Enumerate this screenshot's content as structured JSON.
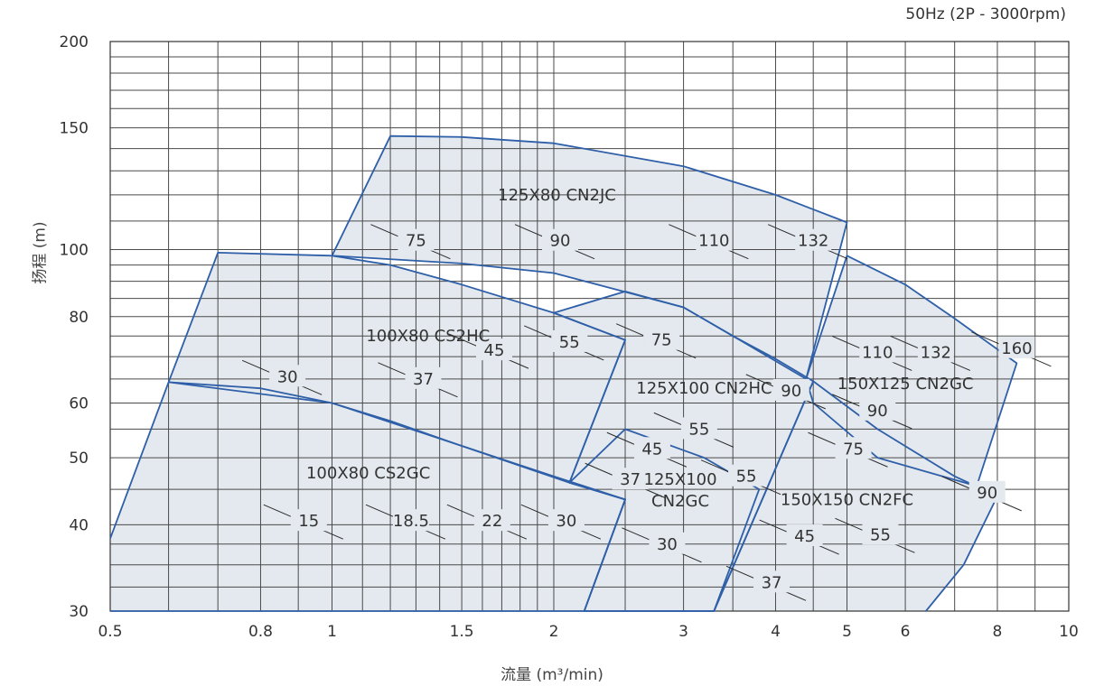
{
  "chart_data": {
    "type": "area",
    "note": "50Hz (2P - 3000rpm)",
    "xlabel": "流量 (m³/min)",
    "ylabel": "扬程 (m)",
    "x_scale": "log",
    "y_scale": "log",
    "xlim": [
      0.5,
      10
    ],
    "ylim": [
      30,
      200
    ],
    "x_ticks": [
      0.5,
      0.8,
      1,
      1.5,
      2,
      3,
      4,
      5,
      6,
      8,
      10
    ],
    "x_tick_labels": [
      "0.5",
      "0.8",
      "1",
      "1.5",
      "2",
      "3",
      "4",
      "5",
      "6",
      "8",
      "10"
    ],
    "y_ticks": [
      30,
      40,
      50,
      60,
      80,
      100,
      150,
      200
    ],
    "y_tick_labels": [
      "30",
      "40",
      "50",
      "60",
      "80",
      "100",
      "150",
      "200"
    ],
    "x_grid": [
      0.5,
      0.6,
      0.7,
      0.8,
      0.9,
      1,
      1.1,
      1.2,
      1.3,
      1.4,
      1.5,
      1.6,
      1.7,
      1.8,
      1.9,
      2,
      2.5,
      3,
      3.5,
      4,
      4.5,
      5,
      6,
      7,
      8,
      9,
      10
    ],
    "y_grid": [
      30,
      32.5,
      35,
      37.5,
      40,
      45,
      50,
      55,
      60,
      65,
      70,
      75,
      80,
      85,
      90,
      95,
      100,
      110,
      120,
      130,
      140,
      150,
      160,
      170,
      180,
      190,
      200
    ],
    "grid": true,
    "colors": {
      "outline": "#2e5fa8",
      "fill": "#e3e9ee",
      "grid": "#4a4a4a",
      "tick_mark": "#333333"
    },
    "series": [
      {
        "name": "100X80 CS2GC",
        "outline": [
          [
            0.5,
            38.2
          ],
          [
            0.6,
            64.3
          ],
          [
            0.8,
            63
          ],
          [
            1,
            60
          ],
          [
            1.2,
            56.5
          ],
          [
            1.5,
            52
          ],
          [
            2,
            47
          ],
          [
            2.5,
            43.5
          ],
          [
            2.2,
            30
          ],
          [
            0.5,
            30
          ]
        ],
        "motor_kw": [
          {
            "label": "15",
            "x": 0.93,
            "y": 40.5
          },
          {
            "label": "18.5",
            "x": 1.28,
            "y": 40.5
          },
          {
            "label": "22",
            "x": 1.65,
            "y": 40.5
          },
          {
            "label": "30",
            "x": 2.08,
            "y": 40.5
          }
        ]
      },
      {
        "name": "100X80 CS2HC",
        "outline": [
          [
            0.6,
            64.3
          ],
          [
            0.7,
            99
          ],
          [
            1,
            98
          ],
          [
            1.2,
            95
          ],
          [
            1.5,
            89
          ],
          [
            2,
            81
          ],
          [
            2.5,
            74
          ],
          [
            2.1,
            46
          ],
          [
            1.5,
            52
          ],
          [
            1,
            60
          ],
          [
            0.6,
            64.3
          ]
        ],
        "motor_kw": [
          {
            "label": "30",
            "x": 0.87,
            "y": 65.5
          },
          {
            "label": "37",
            "x": 1.33,
            "y": 65
          },
          {
            "label": "45",
            "x": 1.66,
            "y": 71.5
          },
          {
            "label": "55",
            "x": 2.1,
            "y": 73.5
          }
        ]
      },
      {
        "name": "125X80 CN2JC",
        "outline": [
          [
            1,
            98
          ],
          [
            1.2,
            146
          ],
          [
            1.5,
            145.5
          ],
          [
            2,
            142.5
          ],
          [
            3,
            132
          ],
          [
            4,
            120
          ],
          [
            5,
            109.5
          ],
          [
            4.4,
            65
          ],
          [
            3.5,
            75
          ],
          [
            3,
            82.5
          ],
          [
            2,
            92.5
          ],
          [
            1.5,
            95.5
          ],
          [
            1,
            98
          ]
        ],
        "motor_kw": [
          {
            "label": "75",
            "x": 1.3,
            "y": 103
          },
          {
            "label": "90",
            "x": 2.04,
            "y": 103
          },
          {
            "label": "110",
            "x": 3.3,
            "y": 103
          },
          {
            "label": "132",
            "x": 4.5,
            "y": 103
          }
        ]
      },
      {
        "name": "125X100 CN2HC",
        "outline": [
          [
            2.1,
            46
          ],
          [
            2.5,
            74
          ],
          [
            2,
            81
          ],
          [
            2.5,
            87
          ],
          [
            3,
            82.5
          ],
          [
            3.5,
            75
          ],
          [
            4,
            69.5
          ],
          [
            4.5,
            64.5
          ],
          [
            3.3,
            30
          ],
          [
            2.2,
            30
          ],
          [
            2.5,
            43.5
          ],
          [
            2.1,
            46
          ]
        ],
        "motor_kw": [
          {
            "label": "75",
            "x": 2.8,
            "y": 74
          },
          {
            "label": "90",
            "x": 4.2,
            "y": 62.5
          },
          {
            "label": "55",
            "x": 3.15,
            "y": 55
          },
          {
            "label": "45",
            "x": 2.72,
            "y": 51.5
          }
        ]
      },
      {
        "name": "125X100 CN2GC",
        "outline": [
          [
            2.1,
            46
          ],
          [
            2.5,
            43.5
          ],
          [
            2.2,
            30
          ],
          [
            3.3,
            30
          ],
          [
            3.8,
            45
          ],
          [
            3.2,
            50
          ],
          [
            2.5,
            55
          ],
          [
            2.1,
            46
          ]
        ],
        "motor_kw": [
          {
            "label": "37",
            "x": 2.54,
            "y": 46.5
          },
          {
            "label": "30",
            "x": 2.85,
            "y": 37.5
          }
        ]
      },
      {
        "name": "150X125 CN2GC",
        "outline": [
          [
            4.4,
            65
          ],
          [
            5,
            98
          ],
          [
            6,
            89
          ],
          [
            7,
            79.5
          ],
          [
            8.5,
            68.5
          ],
          [
            7.5,
            45.5
          ],
          [
            5.5,
            50
          ],
          [
            4.5,
            60
          ],
          [
            4.4,
            65
          ]
        ],
        "motor_kw": [
          {
            "label": "110",
            "x": 5.5,
            "y": 71
          },
          {
            "label": "132",
            "x": 6.6,
            "y": 71
          },
          {
            "label": "160",
            "x": 8.5,
            "y": 72
          },
          {
            "label": "90",
            "x": 5.5,
            "y": 58.5
          },
          {
            "label": "75",
            "x": 5.1,
            "y": 51.5
          }
        ]
      },
      {
        "name": "150X150 CN2FC",
        "outline": [
          [
            3.3,
            30
          ],
          [
            4.5,
            64.5
          ],
          [
            5.5,
            55
          ],
          [
            7,
            47
          ],
          [
            8,
            44
          ],
          [
            7.2,
            35
          ],
          [
            6.4,
            30
          ]
        ],
        "motor_kw": [
          {
            "label": "55",
            "x": 3.65,
            "y": 47
          },
          {
            "label": "90",
            "x": 7.75,
            "y": 44.5
          },
          {
            "label": "45",
            "x": 4.38,
            "y": 38.5
          },
          {
            "label": "55",
            "x": 5.55,
            "y": 38.7
          },
          {
            "label": "37",
            "x": 3.95,
            "y": 33
          }
        ]
      }
    ],
    "series_labels": [
      {
        "text": "100X80 CS2GC",
        "x": 1.12,
        "y": 47.5
      },
      {
        "text": "100X80 CS2HC",
        "x": 1.35,
        "y": 75
      },
      {
        "text": "125X80 CN2JC",
        "x": 2.02,
        "y": 120
      },
      {
        "text": "125X100 CN2HC",
        "x": 3.2,
        "y": 63
      },
      {
        "text": "125X100",
        "x": 2.97,
        "y": 46.5
      },
      {
        "text": "CN2GC",
        "x": 2.97,
        "y": 43.3
      },
      {
        "text": "150X125 CN2GC",
        "x": 6.0,
        "y": 64
      },
      {
        "text": "150X150 CN2FC",
        "x": 5.0,
        "y": 43.5
      }
    ]
  }
}
